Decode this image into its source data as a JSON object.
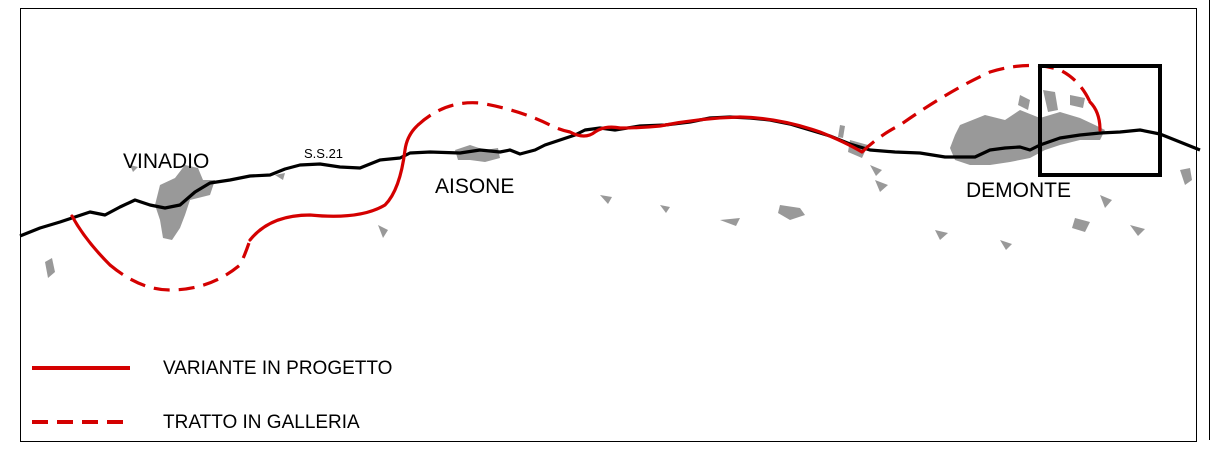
{
  "map": {
    "places": [
      {
        "name": "VINADIO"
      },
      {
        "name": "AISONE"
      },
      {
        "name": "DEMONTE"
      }
    ],
    "road_label": "S.S.21",
    "colors": {
      "road": "#000000",
      "variant": "#d40000",
      "built_up": "#999999",
      "frame": "#000000"
    },
    "legend": [
      {
        "label": "VARIANTE IN PROGETTO",
        "style": "solid"
      },
      {
        "label": "TRATTO IN GALLERIA",
        "style": "dashed"
      }
    ],
    "detail_box": "inset rectangle around east end of DEMONTE"
  }
}
